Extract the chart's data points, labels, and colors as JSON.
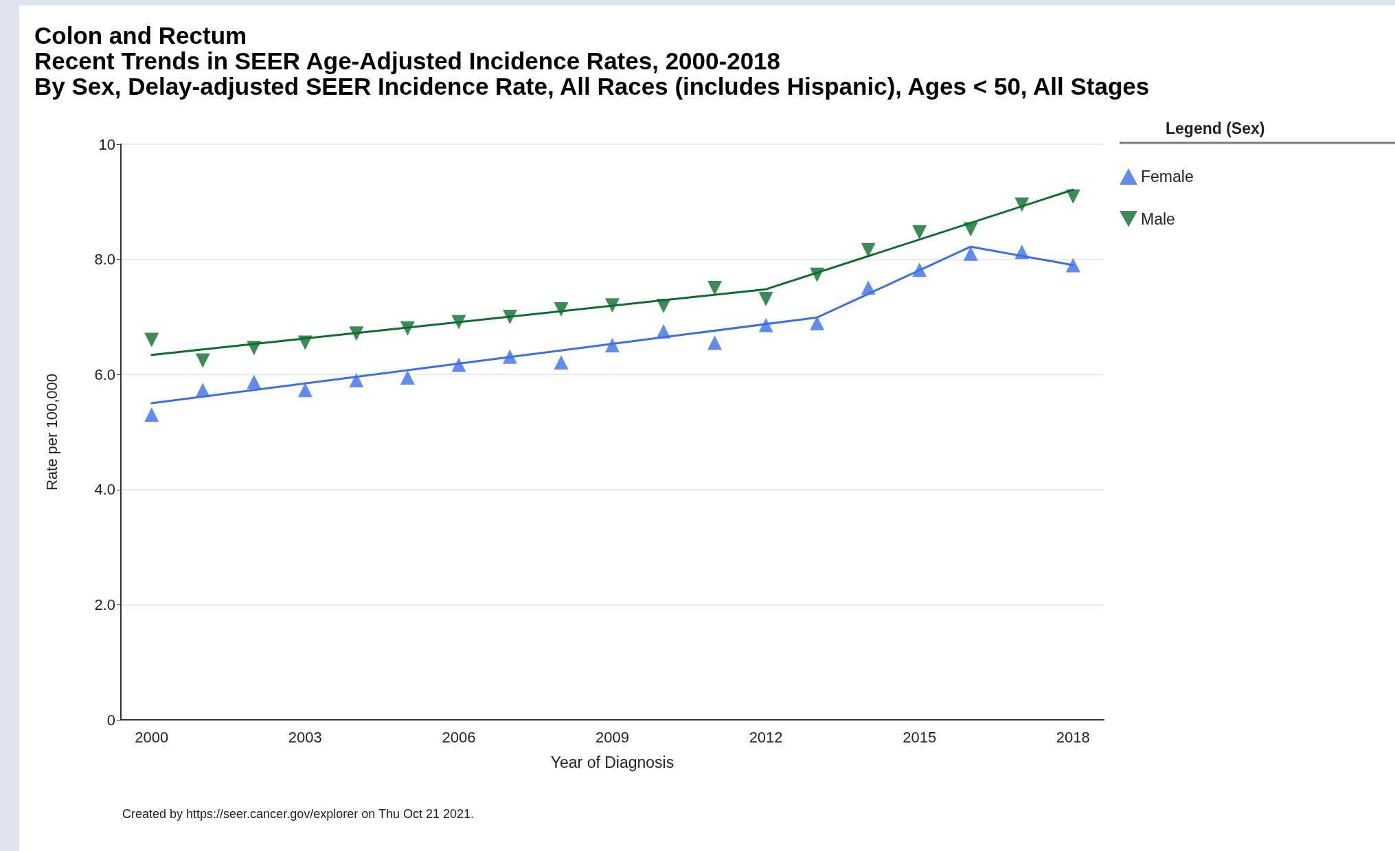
{
  "chart_data": {
    "type": "scatter",
    "title": "Colon and Rectum\nRecent Trends in SEER Age-Adjusted Incidence Rates, 2000-2018\nBy Sex, Delay-adjusted SEER Incidence Rate, All Races (includes Hispanic), Ages < 50, All Stages",
    "xlabel": "Year of Diagnosis",
    "ylabel": "Rate per 100,000",
    "legend_title": "Legend (Sex)",
    "annotations": [
      "Created by https://seer.cancer.gov/explorer on Thu Oct 21 2021."
    ],
    "x": [
      2000,
      2001,
      2002,
      2003,
      2004,
      2005,
      2006,
      2007,
      2008,
      2009,
      2010,
      2011,
      2012,
      2013,
      2014,
      2015,
      2016,
      2017,
      2018
    ],
    "series": [
      {
        "name": "Female",
        "color": "#3a6fe8",
        "marker": "triangle",
        "values": [
          5.3,
          5.73,
          5.87,
          5.73,
          5.9,
          5.95,
          6.17,
          6.31,
          6.21,
          6.51,
          6.75,
          6.55,
          6.86,
          6.89,
          7.51,
          7.82,
          8.1,
          8.13,
          7.9
        ]
      },
      {
        "name": "Male",
        "color": "#0b6e2a",
        "marker": "triangle-down",
        "values": [
          6.6,
          6.24,
          6.46,
          6.55,
          6.71,
          6.8,
          6.91,
          7.0,
          7.13,
          7.2,
          7.19,
          7.5,
          7.31,
          7.73,
          8.16,
          8.47,
          8.52,
          8.95,
          9.09
        ]
      },
      {
        "type": "line",
        "color": "#3a6fe8",
        "marker": "none",
        "x": [
          2000,
          2013,
          2016,
          2018
        ],
        "values": [
          5.5,
          6.99,
          8.22,
          7.9
        ]
      },
      {
        "type": "line",
        "color": "#0b6e2a",
        "marker": "none",
        "x": [
          2000,
          2012,
          2018
        ],
        "values": [
          6.34,
          7.48,
          9.21
        ]
      }
    ],
    "xlim": [
      1999.4,
      2018.6
    ],
    "xticks": [
      2000,
      2003,
      2006,
      2009,
      2012,
      2015,
      2018
    ],
    "ylim": [
      0,
      10
    ],
    "yticks": [
      {
        "value": 0,
        "label": "0"
      },
      {
        "value": 2,
        "label": "2.0"
      },
      {
        "value": 4,
        "label": "4.0"
      },
      {
        "value": 6,
        "label": "6.0"
      },
      {
        "value": 8,
        "label": "8.0"
      },
      {
        "value": 10,
        "label": "10"
      }
    ],
    "grid": "y",
    "legend": "top right"
  }
}
